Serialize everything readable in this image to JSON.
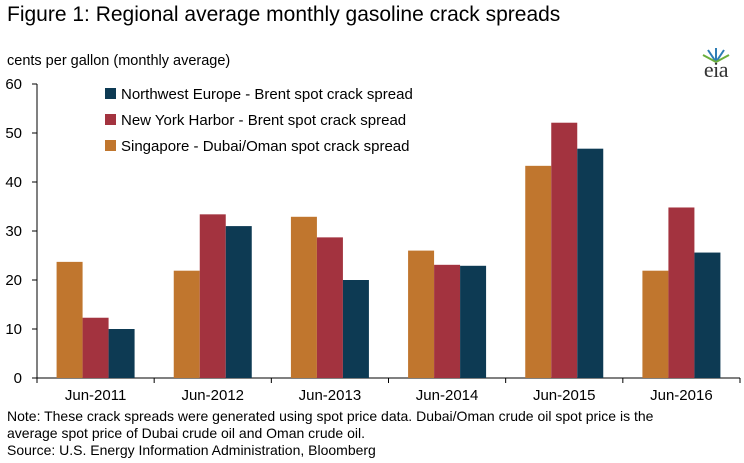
{
  "header": {
    "title": "Figure 1: Regional average monthly gasoline crack spreads",
    "units": "cents per gallon (monthly average)",
    "logo_text": "eia"
  },
  "footer": {
    "note_line1": "Note: These crack spreads were generated using spot price data.  Dubai/Oman crude oil spot price is the",
    "note_line2": "average spot price of Dubai crude oil and Oman crude oil.",
    "source": "Source: U.S. Energy Information Administration, Bloomberg"
  },
  "colors": {
    "singapore": "#C0762E",
    "new_york": "#A3333F",
    "northwest_europe": "#0D3A53"
  },
  "chart_data": {
    "type": "bar",
    "title": "Figure 1: Regional average monthly gasoline crack spreads",
    "ylabel": "cents per gallon (monthly average)",
    "xlabel": "",
    "ylim": [
      0,
      60
    ],
    "yticks": [
      0,
      10,
      20,
      30,
      40,
      50,
      60
    ],
    "grid": false,
    "legend_position": "top-left",
    "categories": [
      "Jun-2011",
      "Jun-2012",
      "Jun-2013",
      "Jun-2014",
      "Jun-2015",
      "Jun-2016"
    ],
    "series": [
      {
        "name": "Singapore - Dubai/Oman spot crack spread",
        "color": "#C0762E",
        "values": [
          23.7,
          21.9,
          32.9,
          26.0,
          43.3,
          21.9
        ]
      },
      {
        "name": "New York Harbor - Brent spot crack spread",
        "color": "#A3333F",
        "values": [
          12.3,
          33.4,
          28.7,
          23.1,
          52.1,
          34.8
        ]
      },
      {
        "name": "Northwest Europe - Brent spot crack spread",
        "color": "#0D3A53",
        "values": [
          10.0,
          31.0,
          20.0,
          22.9,
          46.8,
          25.6
        ]
      }
    ],
    "legend_order": [
      2,
      1,
      0
    ]
  }
}
